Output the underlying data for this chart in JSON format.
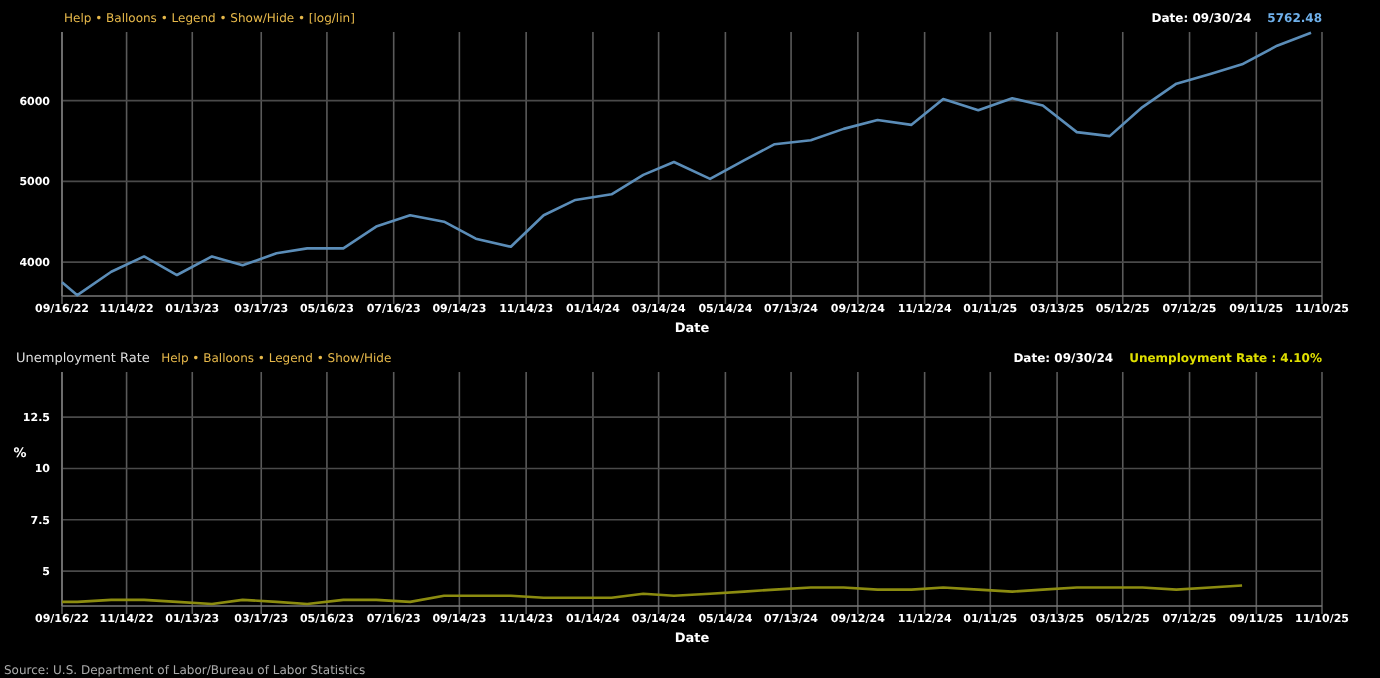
{
  "chart_data": [
    {
      "type": "line",
      "xlabel": "Date",
      "annotations": [
        "Help • Balloons • Legend • Show/Hide • [log/lin]",
        "Date: 09/30/24",
        "5762.48"
      ],
      "x": [
        "2022-09-16",
        "2022-09-30",
        "2022-10-31",
        "2022-11-30",
        "2022-12-30",
        "2023-01-31",
        "2023-02-28",
        "2023-03-31",
        "2023-04-28",
        "2023-05-31",
        "2023-06-30",
        "2023-07-31",
        "2023-08-31",
        "2023-09-29",
        "2023-10-31",
        "2023-11-30",
        "2023-12-29",
        "2024-01-31",
        "2024-02-29",
        "2024-03-28",
        "2024-04-30",
        "2024-05-31",
        "2024-06-28",
        "2024-07-31",
        "2024-08-30",
        "2024-09-30",
        "2024-10-31",
        "2024-11-29",
        "2024-12-31",
        "2025-01-31",
        "2025-02-28",
        "2025-03-31",
        "2025-04-30",
        "2025-05-30",
        "2025-06-30",
        "2025-07-31",
        "2025-08-29",
        "2025-09-30",
        "2025-10-31"
      ],
      "series": [
        {
          "color": "#5b8db8",
          "values": [
            3750,
            3590,
            3880,
            4070,
            3840,
            4070,
            3960,
            4110,
            4170,
            4170,
            4440,
            4580,
            4500,
            4290,
            4190,
            4580,
            4770,
            4840,
            5080,
            5240,
            5030,
            5260,
            5460,
            5510,
            5650,
            5760,
            5700,
            6020,
            5880,
            6030,
            5940,
            5610,
            5560,
            5920,
            6210,
            6330,
            6450,
            6680,
            6840
          ]
        }
      ],
      "xlim": [
        "2022-09-16",
        "2025-11-10"
      ],
      "xticks": [
        {
          "value": "2022-09-16",
          "label": "09/16/22"
        },
        {
          "value": "2022-11-14",
          "label": "11/14/22"
        },
        {
          "value": "2023-01-13",
          "label": "01/13/23"
        },
        {
          "value": "2023-03-17",
          "label": "03/17/23"
        },
        {
          "value": "2023-05-16",
          "label": "05/16/23"
        },
        {
          "value": "2023-07-16",
          "label": "07/16/23"
        },
        {
          "value": "2023-09-14",
          "label": "09/14/23"
        },
        {
          "value": "2023-11-14",
          "label": "11/14/23"
        },
        {
          "value": "2024-01-14",
          "label": "01/14/24"
        },
        {
          "value": "2024-03-14",
          "label": "03/14/24"
        },
        {
          "value": "2024-05-14",
          "label": "05/14/24"
        },
        {
          "value": "2024-07-13",
          "label": "07/13/24"
        },
        {
          "value": "2024-09-12",
          "label": "09/12/24"
        },
        {
          "value": "2024-11-12",
          "label": "11/12/24"
        },
        {
          "value": "2025-01-11",
          "label": "01/11/25"
        },
        {
          "value": "2025-03-13",
          "label": "03/13/25"
        },
        {
          "value": "2025-05-12",
          "label": "05/12/25"
        },
        {
          "value": "2025-07-12",
          "label": "07/12/25"
        },
        {
          "value": "2025-09-11",
          "label": "09/11/25"
        },
        {
          "value": "2025-11-10",
          "label": "11/10/25"
        }
      ],
      "ylim": [
        3580,
        6850
      ],
      "yticks": [
        4000,
        5000,
        6000
      ],
      "grid": true,
      "line_style": "solid",
      "marker": "none"
    },
    {
      "type": "line",
      "title": "Unemployment Rate",
      "xlabel": "Date",
      "ylabel": "%",
      "annotations": [
        "Help • Balloons • Legend • Show/Hide",
        "Date: 09/30/24",
        "Unemployment Rate : 4.10%",
        "Source: U.S. Department of Labor/Bureau of Labor Statistics"
      ],
      "x": [
        "2022-09-16",
        "2022-09-30",
        "2022-10-31",
        "2022-11-30",
        "2022-12-30",
        "2023-01-31",
        "2023-02-28",
        "2023-03-31",
        "2023-04-28",
        "2023-05-31",
        "2023-06-30",
        "2023-07-31",
        "2023-08-31",
        "2023-09-29",
        "2023-10-31",
        "2023-11-30",
        "2023-12-29",
        "2024-01-31",
        "2024-02-29",
        "2024-03-28",
        "2024-04-30",
        "2024-05-31",
        "2024-06-28",
        "2024-07-31",
        "2024-08-30",
        "2024-09-30",
        "2024-10-31",
        "2024-11-29",
        "2024-12-31",
        "2025-01-31",
        "2025-02-28",
        "2025-03-31",
        "2025-04-30",
        "2025-05-30",
        "2025-06-30",
        "2025-07-31",
        "2025-08-29"
      ],
      "series": [
        {
          "color": "#8c8c10",
          "values": [
            3.5,
            3.5,
            3.6,
            3.6,
            3.5,
            3.4,
            3.6,
            3.5,
            3.4,
            3.6,
            3.6,
            3.5,
            3.8,
            3.8,
            3.8,
            3.7,
            3.7,
            3.7,
            3.9,
            3.8,
            3.9,
            4.0,
            4.1,
            4.2,
            4.2,
            4.1,
            4.1,
            4.2,
            4.1,
            4.0,
            4.1,
            4.2,
            4.2,
            4.2,
            4.1,
            4.2,
            4.3
          ]
        }
      ],
      "xlim": [
        "2022-09-16",
        "2025-11-10"
      ],
      "xticks": [
        {
          "value": "2022-09-16",
          "label": "09/16/22"
        },
        {
          "value": "2022-11-14",
          "label": "11/14/22"
        },
        {
          "value": "2023-01-13",
          "label": "01/13/23"
        },
        {
          "value": "2023-03-17",
          "label": "03/17/23"
        },
        {
          "value": "2023-05-16",
          "label": "05/16/23"
        },
        {
          "value": "2023-07-16",
          "label": "07/16/23"
        },
        {
          "value": "2023-09-14",
          "label": "09/14/23"
        },
        {
          "value": "2023-11-14",
          "label": "11/14/23"
        },
        {
          "value": "2024-01-14",
          "label": "01/14/24"
        },
        {
          "value": "2024-03-14",
          "label": "03/14/24"
        },
        {
          "value": "2024-05-14",
          "label": "05/14/24"
        },
        {
          "value": "2024-07-13",
          "label": "07/13/24"
        },
        {
          "value": "2024-09-12",
          "label": "09/12/24"
        },
        {
          "value": "2024-11-12",
          "label": "11/12/24"
        },
        {
          "value": "2025-01-11",
          "label": "01/11/25"
        },
        {
          "value": "2025-03-13",
          "label": "03/13/25"
        },
        {
          "value": "2025-05-12",
          "label": "05/12/25"
        },
        {
          "value": "2025-07-12",
          "label": "07/12/25"
        },
        {
          "value": "2025-09-11",
          "label": "09/11/25"
        },
        {
          "value": "2025-11-10",
          "label": "11/10/25"
        }
      ],
      "ylim": [
        3.3,
        14.7
      ],
      "yticks": [
        5,
        7.5,
        10,
        12.5
      ],
      "grid": true,
      "line_style": "solid",
      "marker": "none"
    }
  ]
}
